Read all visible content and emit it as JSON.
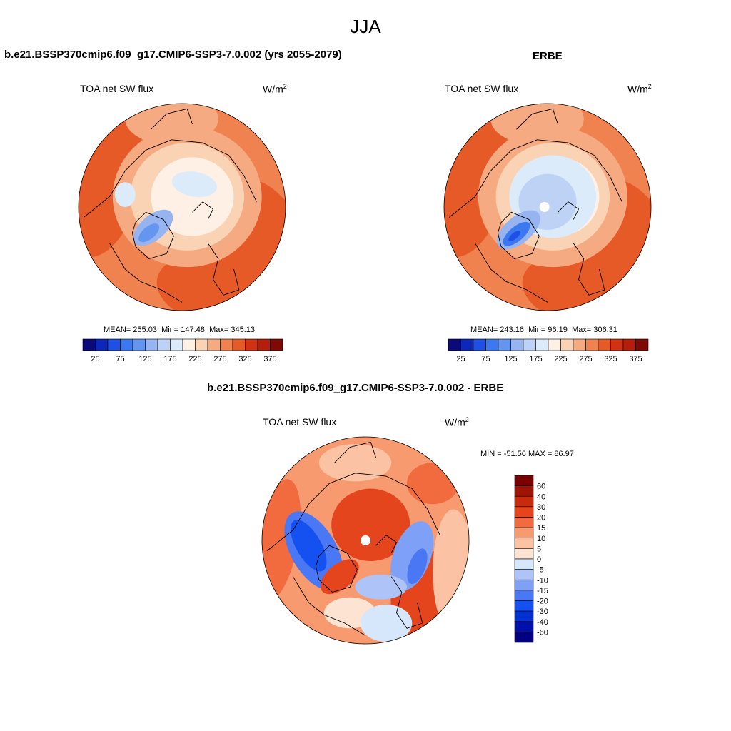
{
  "page": {
    "main_title": "JJA"
  },
  "chart_data": [
    {
      "type": "heatmap",
      "projection": "north polar stereographic",
      "title": "b.e21.BSSP370cmip6.f09_g17.CMIP6-SSP3-7.0.002 (yrs 2055-2079)",
      "variable": "TOA net SW flux",
      "units": "W/m",
      "units_exp": "2",
      "stats": {
        "mean_label": "MEAN=",
        "mean": "255.03",
        "min_label": "Min=",
        "min": "147.48",
        "max_label": "Max=",
        "max": "345.13"
      },
      "colorbar": {
        "orientation": "horizontal",
        "levels": [
          25,
          50,
          75,
          100,
          125,
          150,
          175,
          200,
          225,
          250,
          275,
          300,
          325,
          350,
          375
        ],
        "tick_labels": [
          "25",
          "75",
          "125",
          "175",
          "225",
          "275",
          "325",
          "375"
        ],
        "colors": [
          "#0a0a78",
          "#0d28b8",
          "#1e50e6",
          "#3c78f0",
          "#6496f0",
          "#96b4f0",
          "#bed2f5",
          "#dcebfa",
          "#fff0e6",
          "#fad2b4",
          "#f5aa82",
          "#f08250",
          "#e65a28",
          "#d23214",
          "#b41e0a",
          "#7d0a05"
        ]
      }
    },
    {
      "type": "heatmap",
      "projection": "north polar stereographic",
      "title": "ERBE",
      "variable": "TOA net SW flux",
      "units": "W/m",
      "units_exp": "2",
      "stats": {
        "mean_label": "MEAN=",
        "mean": "243.16",
        "min_label": "Min=",
        "min": "96.19",
        "max_label": "Max=",
        "max": "306.31"
      },
      "colorbar": {
        "orientation": "horizontal",
        "levels": [
          25,
          50,
          75,
          100,
          125,
          150,
          175,
          200,
          225,
          250,
          275,
          300,
          325,
          350,
          375
        ],
        "tick_labels": [
          "25",
          "75",
          "125",
          "175",
          "225",
          "275",
          "325",
          "375"
        ],
        "colors": [
          "#0a0a78",
          "#0d28b8",
          "#1e50e6",
          "#3c78f0",
          "#6496f0",
          "#96b4f0",
          "#bed2f5",
          "#dcebfa",
          "#fff0e6",
          "#fad2b4",
          "#f5aa82",
          "#f08250",
          "#e65a28",
          "#d23214",
          "#b41e0a",
          "#7d0a05"
        ]
      }
    },
    {
      "type": "heatmap",
      "projection": "north polar stereographic",
      "title": "b.e21.BSSP370cmip6.f09_g17.CMIP6-SSP3-7.0.002 - ERBE",
      "variable": "TOA net SW flux",
      "units": "W/m",
      "units_exp": "2",
      "stats_text": "MIN = -51.56 MAX =  86.97",
      "colorbar": {
        "orientation": "vertical",
        "levels": [
          -60,
          -40,
          -30,
          -20,
          -15,
          -10,
          -5,
          0,
          5,
          10,
          15,
          20,
          30,
          40,
          60
        ],
        "tick_labels": [
          "60",
          "40",
          "30",
          "20",
          "15",
          "10",
          "5",
          "0",
          "-5",
          "-10",
          "-15",
          "-20",
          "-30",
          "-40",
          "-60"
        ],
        "colors": [
          "#000080",
          "#0010a8",
          "#0030d0",
          "#1550f0",
          "#4a78f5",
          "#7ea0f7",
          "#aec4f8",
          "#d6e6fb",
          "#fde4d2",
          "#fbc3a3",
          "#f89a70",
          "#f26b3e",
          "#e4451d",
          "#c82a0c",
          "#a01408",
          "#7a0000"
        ]
      }
    }
  ]
}
